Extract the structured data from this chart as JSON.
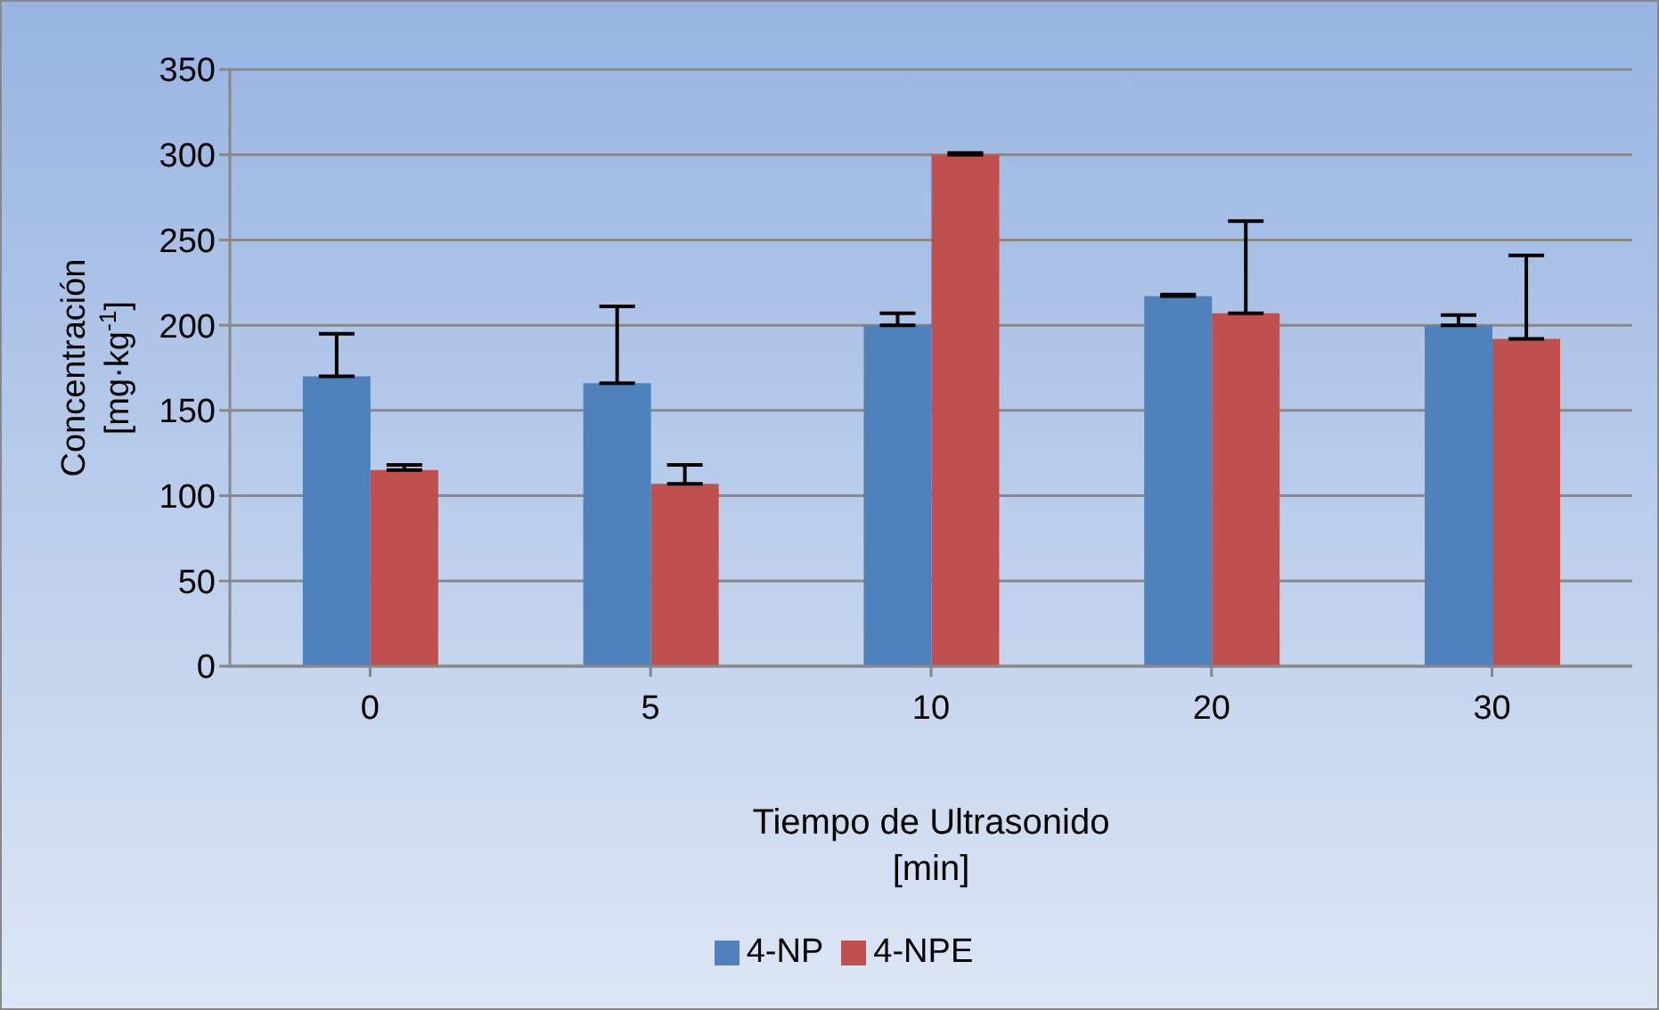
{
  "chart_data": {
    "type": "bar",
    "xlabel": "Tiempo de Ultrasonido\n[min]",
    "ylabel": "Concentración\n[mg·kg$^{-1}$]",
    "categories": [
      "0",
      "5",
      "10",
      "20",
      "30"
    ],
    "series": [
      {
        "name": "4-NP",
        "color": "#4f81bd",
        "values": [
          170,
          166,
          200,
          217,
          200
        ],
        "errors": [
          [
            170,
            195
          ],
          [
            166,
            211
          ],
          [
            200,
            207
          ],
          [
            217,
            218
          ],
          [
            200,
            206
          ]
        ]
      },
      {
        "name": "4-NPE",
        "color": "#c0504d",
        "values": [
          115,
          107,
          300,
          207,
          192
        ],
        "errors": [
          [
            115,
            118
          ],
          [
            107,
            118
          ],
          [
            300,
            301
          ],
          [
            207,
            261
          ],
          [
            192,
            241
          ]
        ]
      }
    ],
    "ylim": [
      0,
      350
    ],
    "yticks": [
      0,
      50,
      100,
      150,
      200,
      250,
      300,
      350
    ],
    "grid": "y",
    "legend": "bottom"
  }
}
